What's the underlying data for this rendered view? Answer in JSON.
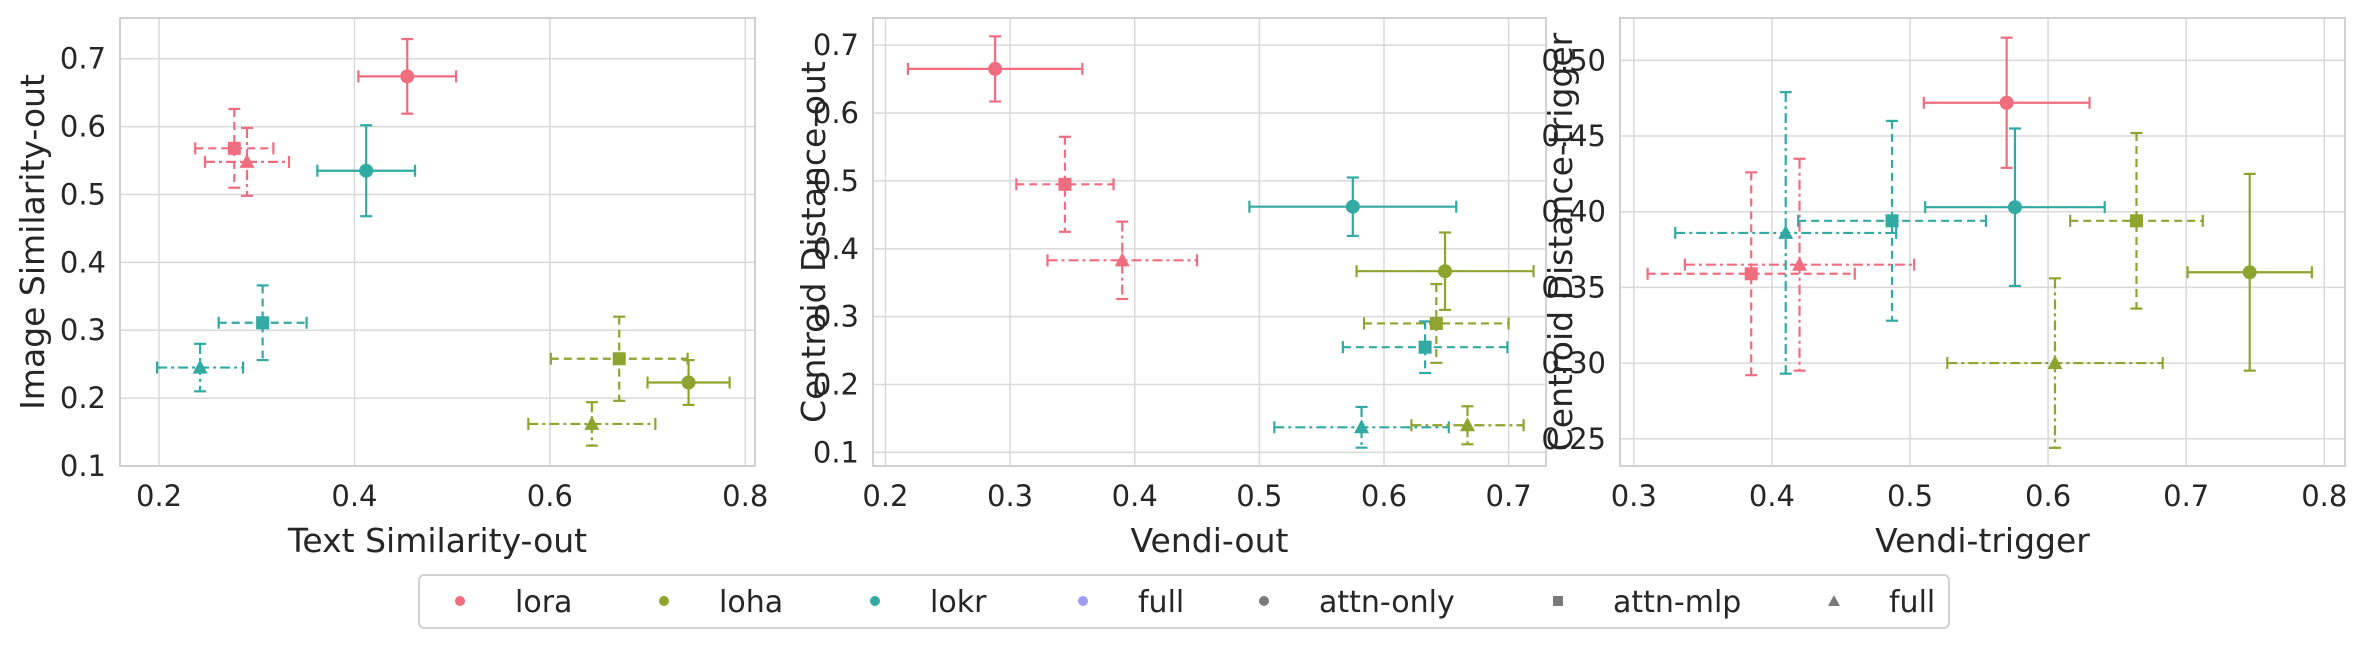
{
  "colors": {
    "lora": "#f06d80",
    "loha": "#8ea42e",
    "lokr": "#30aaa3",
    "full": "#a29af0",
    "grid": "#d9d9d9",
    "frame": "#cccccc",
    "legend_gray": "#7a7a7a"
  },
  "legend": {
    "entries": [
      {
        "label": "lora",
        "marker": "circle",
        "color": "#f06d80"
      },
      {
        "label": "loha",
        "marker": "circle",
        "color": "#8ea42e"
      },
      {
        "label": "lokr",
        "marker": "circle",
        "color": "#30aaa3"
      },
      {
        "label": "full",
        "marker": "circle",
        "color": "#a29af0"
      },
      {
        "label": "attn-only",
        "marker": "circle",
        "color": "#7a7a7a"
      },
      {
        "label": "attn-mlp",
        "marker": "square",
        "color": "#7a7a7a"
      },
      {
        "label": "full",
        "marker": "triangle",
        "color": "#7a7a7a"
      }
    ]
  },
  "chart_data": [
    {
      "type": "scatter",
      "xlabel": "Text Similarity-out",
      "ylabel": "Image Similarity-out",
      "xlim": [
        0.16,
        0.81
      ],
      "ylim": [
        0.1,
        0.76
      ],
      "xticks": [
        "0.2",
        "0.4",
        "0.6",
        "0.8"
      ],
      "yticks": [
        "0.1",
        "0.2",
        "0.3",
        "0.4",
        "0.5",
        "0.6",
        "0.7"
      ],
      "grid": true,
      "points": [
        {
          "method": "lora",
          "config": "attn-only",
          "x": 0.454,
          "y": 0.674,
          "xerr": 0.05,
          "yerr": 0.055
        },
        {
          "method": "lora",
          "config": "attn-mlp",
          "x": 0.277,
          "y": 0.568,
          "xerr": 0.04,
          "yerr": 0.058
        },
        {
          "method": "lora",
          "config": "full",
          "x": 0.29,
          "y": 0.548,
          "xerr": 0.043,
          "yerr": 0.05
        },
        {
          "method": "lokr",
          "config": "attn-only",
          "x": 0.412,
          "y": 0.535,
          "xerr": 0.05,
          "yerr": 0.067
        },
        {
          "method": "lokr",
          "config": "attn-mlp",
          "x": 0.306,
          "y": 0.311,
          "xerr": 0.045,
          "yerr": 0.055
        },
        {
          "method": "lokr",
          "config": "full",
          "x": 0.242,
          "y": 0.245,
          "xerr": 0.044,
          "yerr": 0.035
        },
        {
          "method": "loha",
          "config": "attn-only",
          "x": 0.742,
          "y": 0.223,
          "xerr": 0.042,
          "yerr": 0.033
        },
        {
          "method": "loha",
          "config": "attn-mlp",
          "x": 0.671,
          "y": 0.258,
          "xerr": 0.07,
          "yerr": 0.062
        },
        {
          "method": "loha",
          "config": "full",
          "x": 0.643,
          "y": 0.162,
          "xerr": 0.065,
          "yerr": 0.032
        }
      ]
    },
    {
      "type": "scatter",
      "xlabel": "Vendi-out",
      "ylabel": "Centroid Distance-out",
      "xlim": [
        0.19,
        0.73
      ],
      "ylim": [
        0.08,
        0.74
      ],
      "xticks": [
        "0.2",
        "0.3",
        "0.4",
        "0.5",
        "0.6",
        "0.7"
      ],
      "yticks": [
        "0.1",
        "0.2",
        "0.3",
        "0.4",
        "0.5",
        "0.6",
        "0.7"
      ],
      "grid": true,
      "points": [
        {
          "method": "lora",
          "config": "attn-only",
          "x": 0.288,
          "y": 0.665,
          "xerr": 0.07,
          "yerr": 0.048
        },
        {
          "method": "lora",
          "config": "attn-mlp",
          "x": 0.344,
          "y": 0.495,
          "xerr": 0.039,
          "yerr": 0.07
        },
        {
          "method": "lora",
          "config": "full",
          "x": 0.39,
          "y": 0.383,
          "xerr": 0.06,
          "yerr": 0.057
        },
        {
          "method": "lokr",
          "config": "attn-only",
          "x": 0.575,
          "y": 0.462,
          "xerr": 0.083,
          "yerr": 0.043
        },
        {
          "method": "lokr",
          "config": "attn-mlp",
          "x": 0.633,
          "y": 0.255,
          "xerr": 0.066,
          "yerr": 0.038
        },
        {
          "method": "lokr",
          "config": "full",
          "x": 0.582,
          "y": 0.137,
          "xerr": 0.07,
          "yerr": 0.03
        },
        {
          "method": "loha",
          "config": "attn-only",
          "x": 0.649,
          "y": 0.367,
          "xerr": 0.071,
          "yerr": 0.057
        },
        {
          "method": "loha",
          "config": "attn-mlp",
          "x": 0.642,
          "y": 0.29,
          "xerr": 0.058,
          "yerr": 0.058
        },
        {
          "method": "loha",
          "config": "full",
          "x": 0.667,
          "y": 0.14,
          "xerr": 0.045,
          "yerr": 0.028
        }
      ]
    },
    {
      "type": "scatter",
      "xlabel": "Vendi-trigger",
      "ylabel": "Centroid Distance-trigger",
      "xlim": [
        0.29,
        0.815
      ],
      "ylim": [
        0.232,
        0.528
      ],
      "xticks": [
        "0.3",
        "0.4",
        "0.5",
        "0.6",
        "0.7",
        "0.8"
      ],
      "yticks": [
        "0.25",
        "0.30",
        "0.35",
        "0.40",
        "0.45",
        "0.50"
      ],
      "grid": true,
      "points": [
        {
          "method": "lora",
          "config": "attn-only",
          "x": 0.57,
          "y": 0.472,
          "xerr": 0.06,
          "yerr": 0.043
        },
        {
          "method": "lora",
          "config": "attn-mlp",
          "x": 0.385,
          "y": 0.359,
          "xerr": 0.075,
          "yerr": 0.067
        },
        {
          "method": "lora",
          "config": "full",
          "x": 0.42,
          "y": 0.365,
          "xerr": 0.083,
          "yerr": 0.07
        },
        {
          "method": "lokr",
          "config": "attn-only",
          "x": 0.576,
          "y": 0.403,
          "xerr": 0.065,
          "yerr": 0.052
        },
        {
          "method": "lokr",
          "config": "attn-mlp",
          "x": 0.487,
          "y": 0.394,
          "xerr": 0.068,
          "yerr": 0.066
        },
        {
          "method": "lokr",
          "config": "full",
          "x": 0.41,
          "y": 0.386,
          "xerr": 0.08,
          "yerr": 0.093
        },
        {
          "method": "loha",
          "config": "attn-only",
          "x": 0.746,
          "y": 0.36,
          "xerr": 0.045,
          "yerr": 0.065
        },
        {
          "method": "loha",
          "config": "attn-mlp",
          "x": 0.664,
          "y": 0.394,
          "xerr": 0.048,
          "yerr": 0.058
        },
        {
          "method": "loha",
          "config": "full",
          "x": 0.605,
          "y": 0.3,
          "xerr": 0.078,
          "yerr": 0.056
        }
      ]
    }
  ]
}
